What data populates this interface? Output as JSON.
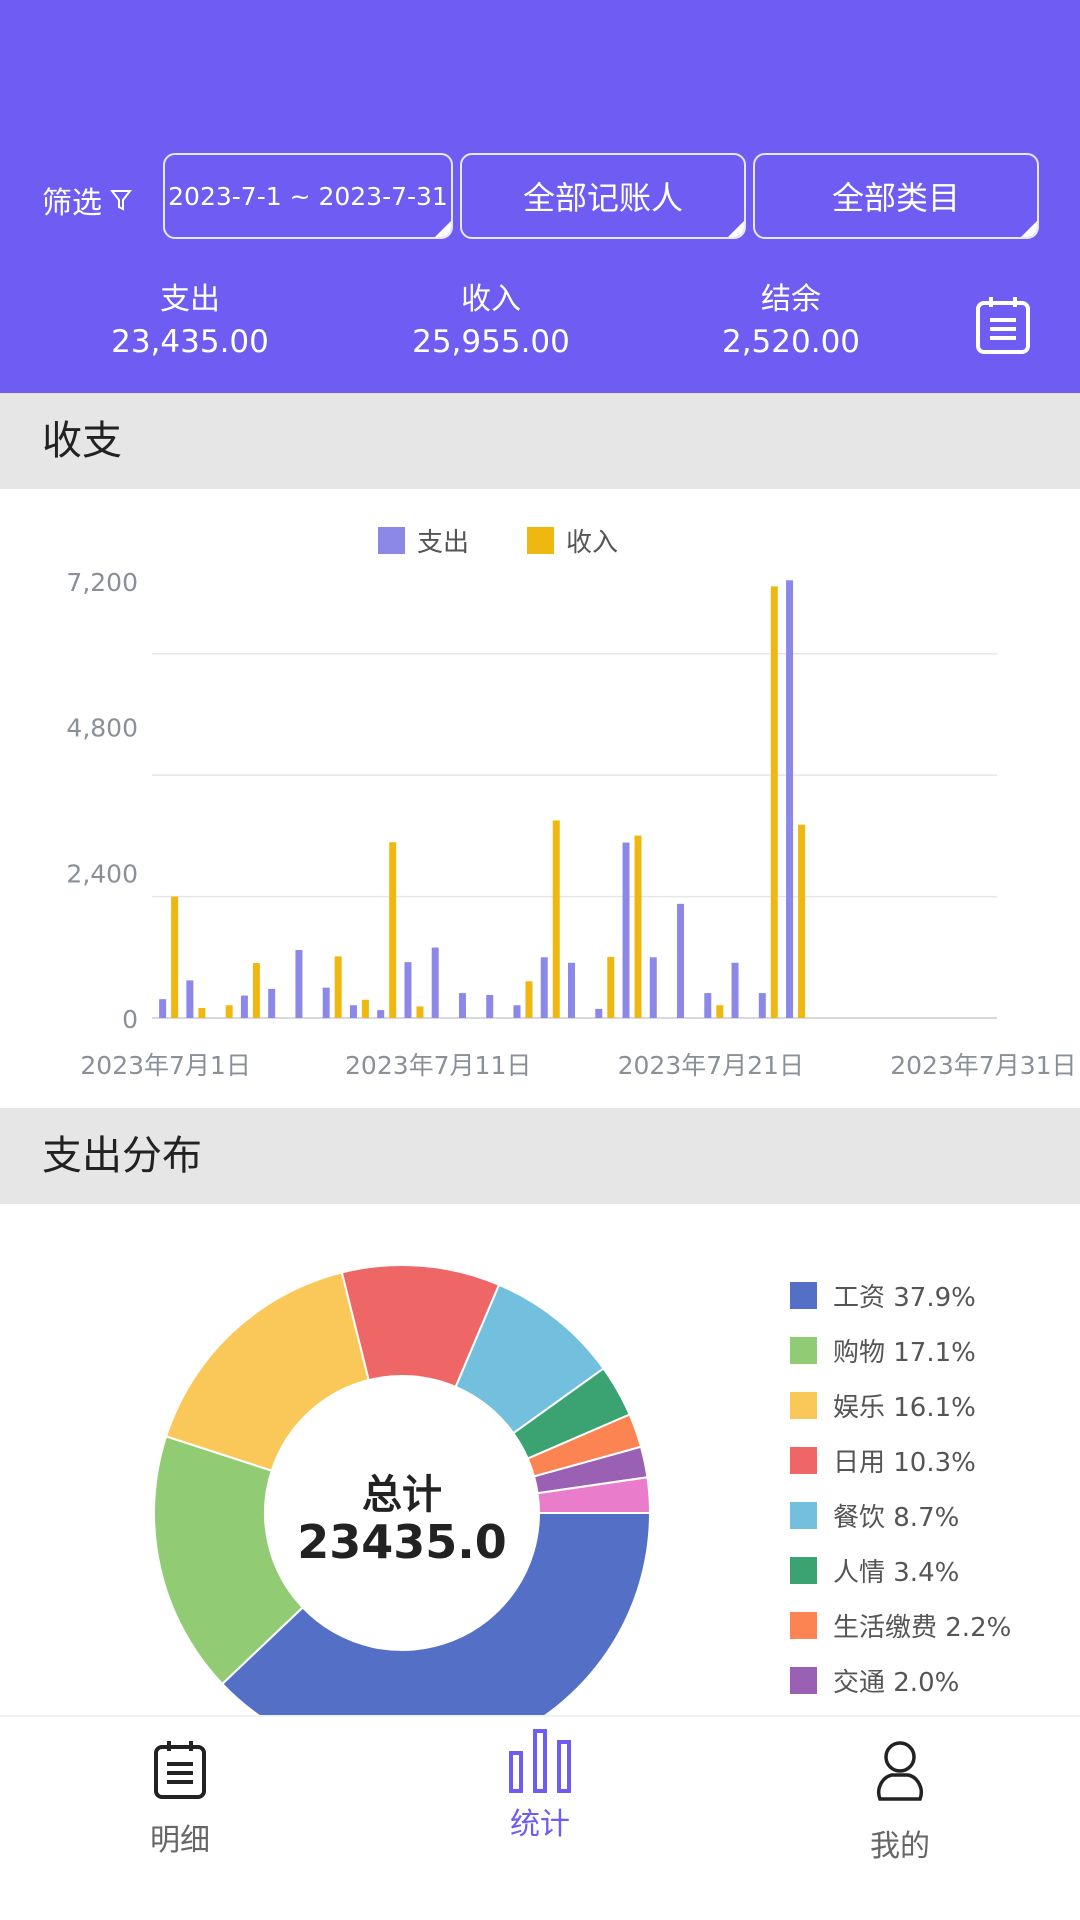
{
  "header": {
    "filter_label": "筛选",
    "date_range": "2023-7-1 ~ 2023-7-31",
    "bookkeeper": "全部记账人",
    "category": "全部类目",
    "summary": [
      {
        "label": "支出",
        "value": "23,435.00"
      },
      {
        "label": "收入",
        "value": "25,955.00"
      },
      {
        "label": "结余",
        "value": "2,520.00"
      }
    ],
    "brand_color": "#6F5CF2"
  },
  "sections": {
    "income_expense": "收支",
    "expense_distribution": "支出分布"
  },
  "chart_data": [
    {
      "type": "bar",
      "legend": [
        "支出",
        "收入"
      ],
      "legend_position": "top",
      "x": [
        1,
        2,
        3,
        4,
        5,
        6,
        7,
        8,
        9,
        10,
        11,
        12,
        13,
        14,
        15,
        16,
        17,
        18,
        19,
        20,
        21,
        22,
        23,
        24,
        25,
        26,
        27,
        28,
        29,
        30,
        31
      ],
      "x_tick_labels": [
        "2023年7月1日",
        "2023年7月11日",
        "2023年7月21日",
        "2023年7月31日"
      ],
      "y_tick_labels": [
        "0",
        "2,400",
        "4,800",
        "7,200"
      ],
      "gridlines": [
        2000,
        4000,
        6000
      ],
      "ylim": [
        0,
        7300
      ],
      "series": [
        {
          "name": "支出",
          "color": "#8C88E8",
          "values": [
            310,
            620,
            0,
            370,
            480,
            1120,
            500,
            210,
            130,
            920,
            1160,
            410,
            380,
            210,
            1000,
            910,
            150,
            2890,
            1000,
            1880,
            410,
            910,
            410,
            7210,
            0,
            0,
            0,
            0,
            0,
            0,
            0
          ]
        },
        {
          "name": "收入",
          "color": "#EFB810",
          "values": [
            2000,
            165,
            210,
            905,
            0,
            0,
            1015,
            300,
            2895,
            190,
            0,
            0,
            0,
            605,
            3255,
            0,
            1005,
            3005,
            0,
            0,
            210,
            0,
            7110,
            3185,
            0,
            0,
            0,
            0,
            0,
            0,
            0
          ]
        }
      ]
    },
    {
      "type": "pie",
      "donut": true,
      "center_label": "总计",
      "center_value": "23435.0",
      "slices": [
        {
          "name": "工资",
          "percent": 37.9,
          "label": "37.9%",
          "color": "#5470C6"
        },
        {
          "name": "购物",
          "percent": 17.1,
          "label": "17.1%",
          "color": "#91CC75"
        },
        {
          "name": "娱乐",
          "percent": 16.1,
          "label": "16.1%",
          "color": "#FAC858"
        },
        {
          "name": "日用",
          "percent": 10.3,
          "label": "10.3%",
          "color": "#EE6666"
        },
        {
          "name": "餐饮",
          "percent": 8.7,
          "label": "8.7%",
          "color": "#73C0DE"
        },
        {
          "name": "人情",
          "percent": 3.4,
          "label": "3.4%",
          "color": "#3BA272"
        },
        {
          "name": "生活缴费",
          "percent": 2.2,
          "label": "2.2%",
          "color": "#FC8452"
        },
        {
          "name": "交通",
          "percent": 2.0,
          "label": "2.0%",
          "color": "#9A60B4"
        },
        {
          "percent": 2.3,
          "color": "#EA7CCC"
        }
      ]
    }
  ],
  "nav": [
    {
      "label": "明细",
      "icon": "notepad-icon",
      "active": false
    },
    {
      "label": "统计",
      "icon": "bar-chart-icon",
      "active": true
    },
    {
      "label": "我的",
      "icon": "user-icon",
      "active": false
    }
  ]
}
